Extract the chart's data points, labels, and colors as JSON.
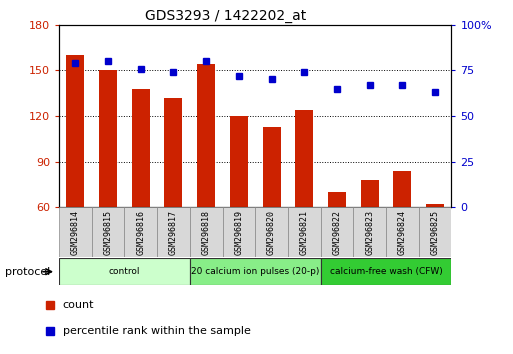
{
  "title": "GDS3293 / 1422202_at",
  "samples": [
    "GSM296814",
    "GSM296815",
    "GSM296816",
    "GSM296817",
    "GSM296818",
    "GSM296819",
    "GSM296820",
    "GSM296821",
    "GSM296822",
    "GSM296823",
    "GSM296824",
    "GSM296825"
  ],
  "bar_values": [
    160,
    150,
    138,
    132,
    154,
    120,
    113,
    124,
    70,
    78,
    84,
    62
  ],
  "percentile_values": [
    79,
    80,
    76,
    74,
    80,
    72,
    70,
    74,
    65,
    67,
    67,
    63
  ],
  "ylim_left": [
    60,
    180
  ],
  "ylim_right": [
    0,
    100
  ],
  "yticks_left": [
    60,
    90,
    120,
    150,
    180
  ],
  "yticks_right": [
    0,
    25,
    50,
    75,
    100
  ],
  "bar_color": "#cc2200",
  "dot_color": "#0000cc",
  "groups": [
    {
      "label": "control",
      "start": 0,
      "end": 4,
      "color": "#ccffcc"
    },
    {
      "label": "20 calcium ion pulses (20-p)",
      "start": 4,
      "end": 8,
      "color": "#88ee88"
    },
    {
      "label": "calcium-free wash (CFW)",
      "start": 8,
      "end": 12,
      "color": "#33cc33"
    }
  ],
  "legend_items": [
    {
      "label": "count",
      "color": "#cc2200"
    },
    {
      "label": "percentile rank within the sample",
      "color": "#0000cc"
    }
  ],
  "protocol_label": "protocol",
  "background_color": "#ffffff",
  "tick_color_left": "#cc2200",
  "tick_color_right": "#0000cc",
  "bar_width": 0.55
}
